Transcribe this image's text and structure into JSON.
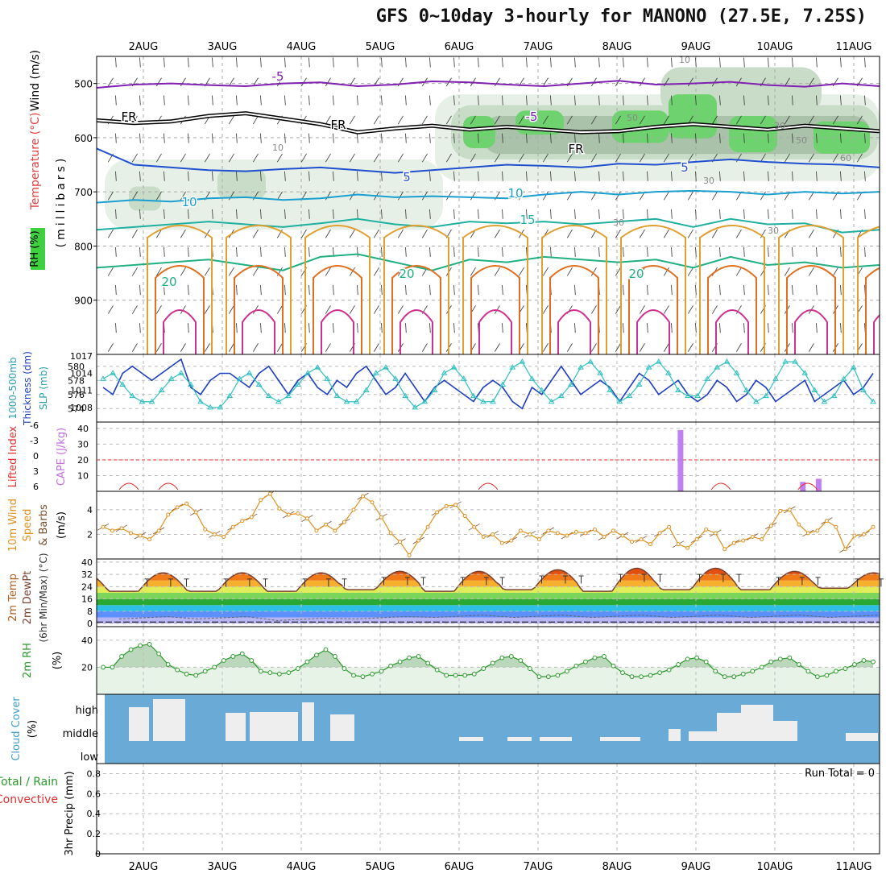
{
  "title": "GFS 0~10day 3-hourly for MANONO (27.5E, 7.25S)",
  "date_labels": [
    "2AUG",
    "3AUG",
    "4AUG",
    "5AUG",
    "6AUG",
    "7AUG",
    "8AUG",
    "9AUG",
    "10AUG",
    "11AUG"
  ],
  "chart_data": [
    {
      "type": "heatmap",
      "id": "sounding",
      "left_labels": [
        "RH (%)",
        "Temperature (°C)",
        "Wind (m/s)"
      ],
      "ylabel": "(millibars)",
      "y_ticks": [
        500,
        600,
        700,
        800,
        900
      ],
      "ylim": [
        1000,
        450
      ],
      "isotherm_labels": [
        {
          "text": "-5",
          "color": "#8020b0"
        },
        {
          "text": "-5",
          "color": "#8020b0"
        },
        {
          "text": "FR",
          "color": "#000000"
        },
        {
          "text": "FR",
          "color": "#000000"
        },
        {
          "text": "FR",
          "color": "#000000"
        },
        {
          "text": "5",
          "color": "#2050d0"
        },
        {
          "text": "5",
          "color": "#2050d0"
        },
        {
          "text": "10",
          "color": "#1a9fd0"
        },
        {
          "text": "10",
          "color": "#1a9fd0"
        },
        {
          "text": "15",
          "color": "#20b0a0"
        },
        {
          "text": "20",
          "color": "#20b080"
        },
        {
          "text": "20",
          "color": "#20b080"
        },
        {
          "text": "20",
          "color": "#20b080"
        }
      ],
      "rh_labels": [
        "10",
        "10",
        "30",
        "30",
        "30",
        "50",
        "50",
        "30",
        "60"
      ],
      "isotherms": [
        {
          "temp": -5,
          "pressure": [
            508,
            502,
            500,
            503,
            505,
            500,
            498,
            505,
            502,
            496,
            498,
            502,
            505,
            500,
            495,
            502,
            500,
            497,
            503,
            506,
            500,
            505
          ],
          "color": "#8020b0"
        },
        {
          "temp": 0,
          "pressure": [
            568,
            573,
            570,
            560,
            555,
            565,
            575,
            590,
            583,
            578,
            585,
            580,
            585,
            590,
            588,
            580,
            575,
            580,
            585,
            578,
            583,
            588
          ],
          "color": "#000000"
        },
        {
          "temp": 5,
          "pressure": [
            620,
            650,
            655,
            660,
            662,
            658,
            655,
            660,
            665,
            660,
            655,
            650,
            652,
            655,
            648,
            650,
            645,
            640,
            645,
            648,
            650,
            655
          ],
          "color": "#2050d0"
        },
        {
          "temp": 10,
          "pressure": [
            720,
            715,
            718,
            712,
            710,
            715,
            712,
            705,
            710,
            708,
            710,
            712,
            705,
            700,
            705,
            700,
            698,
            700,
            705,
            700,
            703,
            700
          ],
          "color": "#1a9fd0"
        },
        {
          "temp": 15,
          "pressure": [
            770,
            765,
            760,
            755,
            760,
            765,
            758,
            750,
            760,
            765,
            755,
            758,
            755,
            760,
            755,
            750,
            765,
            750,
            760,
            758,
            775,
            770
          ],
          "color": "#20b0a0"
        },
        {
          "temp": 20,
          "pressure": [
            840,
            835,
            830,
            825,
            835,
            845,
            820,
            815,
            830,
            845,
            825,
            830,
            820,
            825,
            830,
            825,
            840,
            820,
            835,
            830,
            840,
            835
          ],
          "color": "#20b080"
        }
      ],
      "rh_shading": [
        {
          "level": "10-30",
          "color": "#e6f0e6"
        },
        {
          "level": "30-50",
          "color": "#c8dcc8"
        },
        {
          "level": "50-60",
          "color": "#a9c2a9"
        },
        {
          "level": "60+",
          "color": "#6ed36e"
        }
      ]
    },
    {
      "type": "line",
      "id": "thickness_slp",
      "left_labels": [
        "1000-500mb",
        "Thickness (dm)",
        "SLP (mb)"
      ],
      "left_ticks": [
        574,
        576,
        578,
        580
      ],
      "right_ticks": [
        1008,
        1011,
        1014,
        1017
      ],
      "series": [
        {
          "values": [
            577,
            576,
            579,
            580,
            579,
            578,
            579,
            580,
            581,
            577,
            576,
            578,
            579,
            579,
            578,
            577,
            579,
            580,
            578,
            576,
            578,
            579,
            577,
            576,
            578,
            577,
            579,
            580,
            578,
            576,
            577,
            579,
            577,
            575,
            577,
            578,
            577,
            576,
            575,
            577,
            578,
            577,
            575,
            574,
            577,
            576,
            578,
            580,
            578,
            576,
            577,
            578,
            577,
            575,
            577,
            579,
            578,
            576,
            577,
            578,
            576,
            575,
            576,
            578,
            577,
            575,
            576,
            578,
            577,
            575,
            576,
            577,
            578,
            575,
            576,
            577,
            578,
            576,
            577,
            579
          ],
          "color": "#1f3fbf"
        },
        {
          "values": [
            1013,
            1014,
            1012,
            1010,
            1009,
            1009,
            1011,
            1013,
            1014,
            1012,
            1009,
            1008,
            1008,
            1010,
            1013,
            1014,
            1012,
            1010,
            1009,
            1010,
            1012,
            1014,
            1015,
            1013,
            1010,
            1009,
            1009,
            1011,
            1014,
            1015,
            1013,
            1010,
            1008,
            1009,
            1011,
            1014,
            1015,
            1013,
            1010,
            1009,
            1009,
            1012,
            1015,
            1016,
            1013,
            1011,
            1009,
            1010,
            1012,
            1015,
            1016,
            1014,
            1011,
            1009,
            1010,
            1012,
            1015,
            1016,
            1014,
            1011,
            1010,
            1010,
            1013,
            1015,
            1016,
            1014,
            1011,
            1009,
            1010,
            1013,
            1016,
            1016,
            1014,
            1011,
            1009,
            1010,
            1013,
            1015,
            1011,
            1009
          ],
          "color": "#30c0c0"
        }
      ]
    },
    {
      "type": "bar",
      "id": "lifted_cape",
      "left_labels": [
        "Lifted Index",
        "CAPE (J/kg)"
      ],
      "left_ticks": [
        "-6",
        "-3",
        "0",
        "3",
        "6"
      ],
      "right_ticks": [
        10,
        20,
        30,
        40
      ],
      "cape": [
        {
          "day": 6.8,
          "value": 39
        },
        {
          "day": 8.35,
          "value": 6
        },
        {
          "day": 8.55,
          "value": 8
        }
      ],
      "lifted_index_color": "#e03030"
    },
    {
      "type": "line",
      "id": "wind10m",
      "left_labels": [
        "10m Wind",
        "Speed",
        "& Barbs"
      ],
      "ylabel": "(m/s)",
      "y_ticks": [
        2,
        4
      ],
      "ylim": [
        0,
        5.5
      ],
      "series": [
        {
          "values": [
            2.6,
            2.3,
            2.5,
            2.1,
            1.9,
            1.6,
            2.3,
            3.6,
            4.2,
            4.5,
            3.8,
            2.4,
            2.0,
            1.8,
            2.6,
            3.1,
            3.4,
            4.8,
            5.3,
            4.1,
            3.6,
            3.7,
            3.3,
            2.3,
            2.8,
            2.3,
            3.0,
            4.0,
            5.1,
            4.6,
            3.4,
            2.1,
            1.4,
            0.3,
            1.5,
            2.6,
            3.8,
            4.3,
            4.4,
            3.5,
            2.6,
            1.8,
            2.0,
            1.3,
            1.5,
            2.3,
            2.0,
            1.6,
            2.3,
            2.1,
            1.9,
            2.2,
            2.1,
            2.4,
            1.8,
            2.3,
            1.9,
            1.4,
            1.6,
            1.2,
            2.1,
            2.6,
            1.2,
            0.9,
            1.6,
            2.4,
            2.1,
            0.8,
            1.3,
            1.5,
            1.8,
            1.6,
            2.7,
            3.9,
            4.0,
            2.8,
            2.1,
            2.3,
            3.1,
            2.6,
            0.8,
            1.9,
            2.0,
            2.6
          ],
          "color": "#e0901e"
        }
      ]
    },
    {
      "type": "area",
      "id": "temp2m",
      "left_labels": [
        "2m Temp",
        "2m DewPt",
        "(6hr Min/Max) (°C)"
      ],
      "y_ticks": [
        0,
        8,
        16,
        24,
        32,
        40
      ],
      "ylim": [
        -2,
        42
      ],
      "bands": [
        {
          "from": 0,
          "to": 4,
          "color": "#b9b6f5"
        },
        {
          "from": 4,
          "to": 8,
          "color": "#5d8fff"
        },
        {
          "from": 8,
          "to": 12,
          "color": "#2cc0e6"
        },
        {
          "from": 12,
          "to": 16,
          "color": "#2aa834"
        },
        {
          "from": 16,
          "to": 20,
          "color": "#7bd65b"
        },
        {
          "from": 20,
          "to": 24,
          "color": "#e0ec58"
        },
        {
          "from": 24,
          "to": 28,
          "color": "#f6b02d"
        },
        {
          "from": 28,
          "to": 32,
          "color": "#f07a18"
        },
        {
          "from": 32,
          "to": 36,
          "color": "#e34f0f"
        },
        {
          "from": 36,
          "to": 42,
          "color": "#b91a1a"
        }
      ],
      "daily_max": [
        33,
        33,
        33,
        34,
        34,
        35,
        36,
        36,
        34,
        33
      ],
      "daily_min": [
        21,
        21,
        21,
        22,
        21,
        22,
        21,
        22,
        22,
        23
      ],
      "dewpoint": [
        3,
        3,
        2,
        3,
        4,
        4,
        4,
        4,
        4,
        4
      ]
    },
    {
      "type": "area",
      "id": "rh2m",
      "left_labels": [
        "2m RH",
        "(%)"
      ],
      "y_ticks": [
        20,
        40
      ],
      "ylim": [
        0,
        50
      ],
      "series": [
        {
          "values": [
            20,
            20,
            28,
            33,
            36,
            37,
            30,
            22,
            18,
            15,
            14,
            17,
            20,
            25,
            28,
            30,
            25,
            17,
            16,
            15,
            16,
            19,
            24,
            29,
            33,
            28,
            19,
            14,
            13,
            15,
            17,
            21,
            24,
            27,
            28,
            23,
            18,
            14,
            14,
            14,
            15,
            19,
            23,
            27,
            28,
            25,
            19,
            13,
            13,
            14,
            17,
            21,
            24,
            27,
            28,
            21,
            16,
            13,
            13,
            14,
            16,
            18,
            22,
            26,
            27,
            24,
            17,
            13,
            13,
            15,
            17,
            20,
            24,
            26,
            27,
            22,
            17,
            13,
            14,
            17,
            19,
            22,
            25,
            24
          ],
          "color": "#2b9a2b"
        }
      ]
    },
    {
      "type": "bar",
      "id": "cloud",
      "left_labels": [
        "Cloud Cover",
        "(%)"
      ],
      "y_categories": [
        "high",
        "middle",
        "low"
      ],
      "background": "#6aaad6"
    },
    {
      "type": "bar",
      "id": "precip",
      "left_labels": [
        "Total / Rain",
        "Convective",
        "3hr Precip (mm)"
      ],
      "y_ticks": [
        "0",
        "0.2",
        "0.4",
        "0.6",
        "0.8"
      ],
      "ylim": [
        0,
        0.9
      ],
      "run_total": "Run Total = 0",
      "values": []
    }
  ]
}
